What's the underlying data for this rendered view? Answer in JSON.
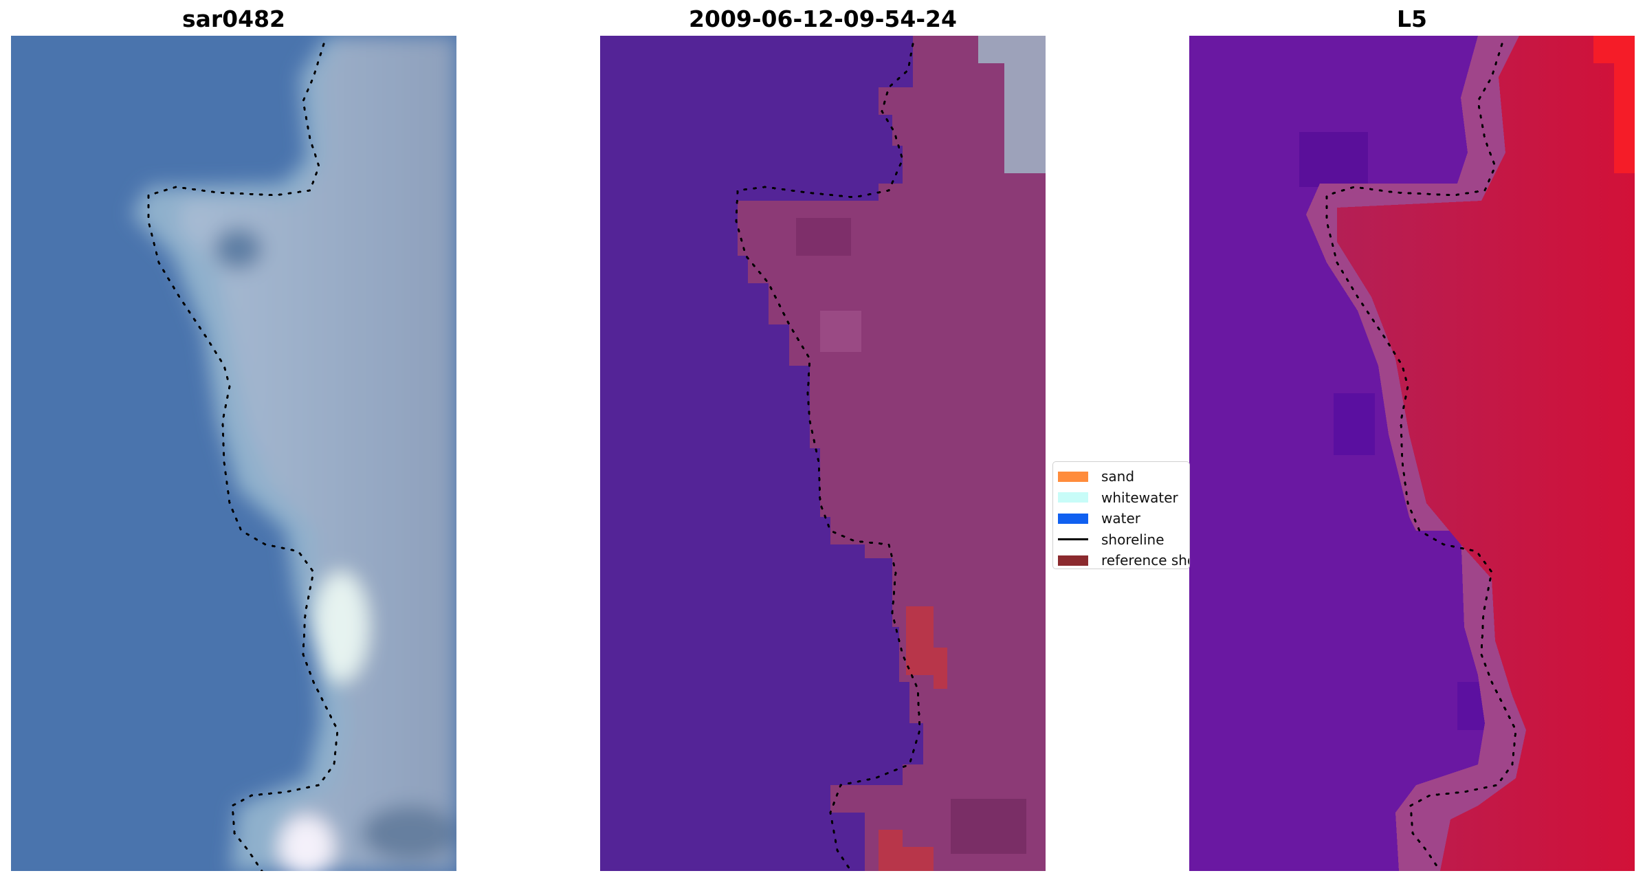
{
  "panels": [
    {
      "title": "sar0482",
      "style": "rgb"
    },
    {
      "title": "2009-06-12-09-54-24",
      "style": "class"
    },
    {
      "title": "L5",
      "style": "index"
    }
  ],
  "legend": {
    "items": [
      {
        "label": "sand",
        "color": "#ff8c3c"
      },
      {
        "label": "whitewater",
        "color": "#c8fcf8"
      },
      {
        "label": "water",
        "color": "#1060f0"
      },
      {
        "label": "shoreline",
        "color": "#000000"
      },
      {
        "label": "reference shoreline",
        "color": "#8b2a2e"
      }
    ]
  },
  "colors": {
    "water_rgb": "#4a74ad",
    "water_class": "#542497",
    "land_class": "#8c3a76",
    "sand_overlay": "#b8364a",
    "water_index": "#6a18a2",
    "land_index": "#c41644",
    "land_index_hot": "#f51c28"
  }
}
